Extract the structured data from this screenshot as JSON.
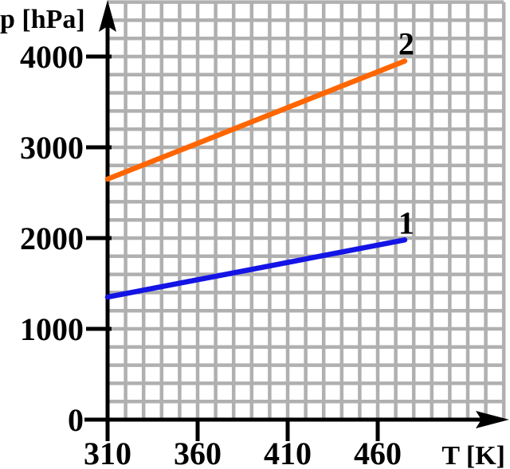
{
  "chart_data": {
    "type": "line",
    "title": "",
    "xlabel": "T [K]",
    "ylabel": "p [hPa]",
    "xlim": [
      310,
      530
    ],
    "ylim": [
      0,
      4600
    ],
    "x_tick_values": [
      310,
      360,
      410,
      460
    ],
    "x_tick_labels": [
      "310",
      "360",
      "410",
      "460"
    ],
    "y_tick_values": [
      0,
      1000,
      2000,
      3000,
      4000
    ],
    "y_tick_labels": [
      "0",
      "1000",
      "2000",
      "3000",
      "4000"
    ],
    "grid": {
      "visible": true,
      "x_step": 10,
      "y_step": 200,
      "color": "#b0b0b0"
    },
    "axes": {
      "color": "#000000",
      "arrowheads": true
    },
    "legend_position": "labels-at-line-ends",
    "series": [
      {
        "name": "1",
        "color": "#1414e6",
        "points": [
          [
            310,
            1350
          ],
          [
            475,
            1980
          ]
        ]
      },
      {
        "name": "2",
        "color": "#ff6600",
        "points": [
          [
            310,
            2650
          ],
          [
            475,
            3950
          ]
        ]
      }
    ]
  }
}
